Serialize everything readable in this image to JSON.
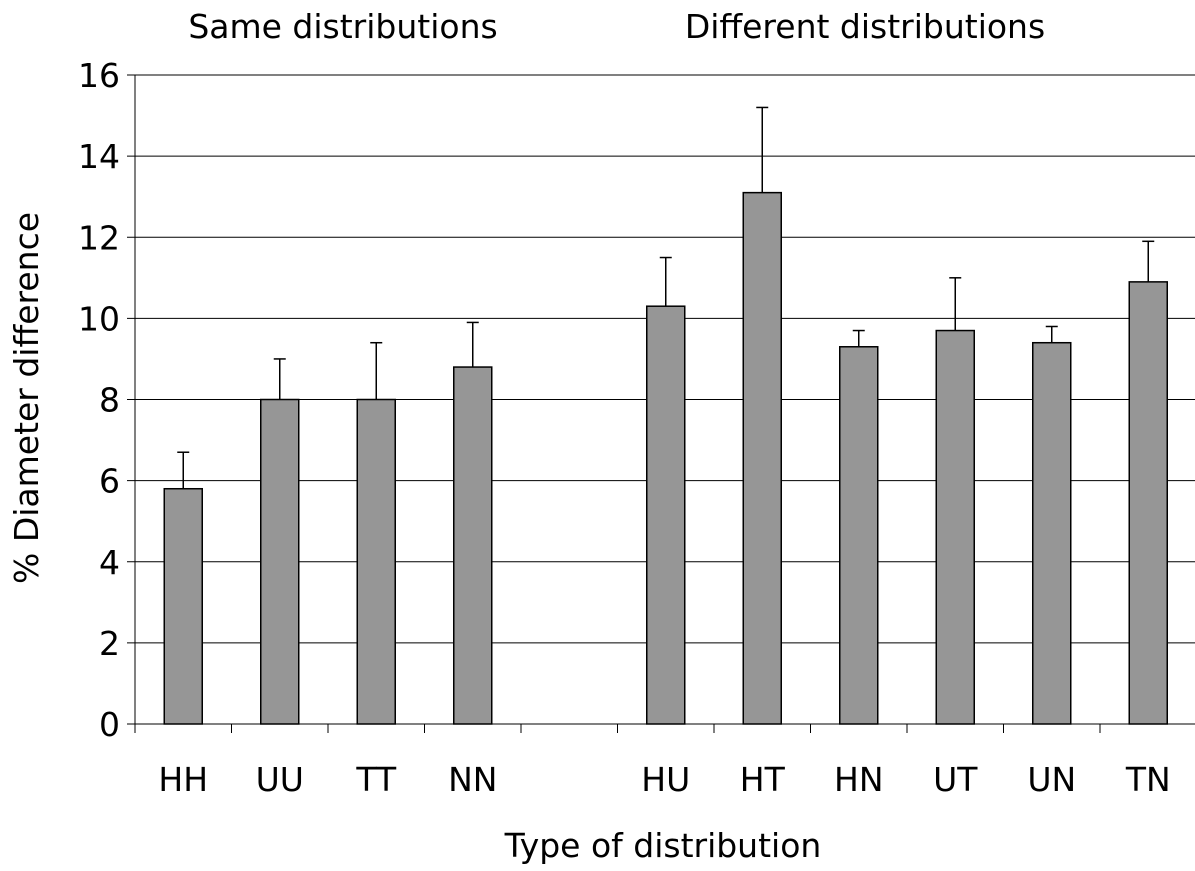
{
  "chart_data": {
    "type": "bar",
    "title": "",
    "xlabel": "Type of distribution",
    "ylabel": "% Diameter difference",
    "ylim": [
      0,
      16
    ],
    "yticks": [
      0,
      2,
      4,
      6,
      8,
      10,
      12,
      14,
      16
    ],
    "grid": true,
    "legend": "none",
    "bar_color": "#969696",
    "categories": [
      "HH",
      "UU",
      "TT",
      "NN",
      "",
      "HU",
      "HT",
      "HN",
      "UT",
      "UN",
      "TN"
    ],
    "values": [
      5.8,
      8.0,
      8.0,
      8.8,
      null,
      10.3,
      13.1,
      9.3,
      9.7,
      9.4,
      10.9
    ],
    "error_upper": [
      6.7,
      9.0,
      9.4,
      9.9,
      null,
      11.5,
      15.2,
      9.7,
      11.0,
      9.8,
      11.9
    ],
    "group_labels": [
      {
        "text": "Same distributions",
        "from": 0,
        "to": 3
      },
      {
        "text": "Different distributions",
        "from": 5,
        "to": 10
      }
    ]
  }
}
